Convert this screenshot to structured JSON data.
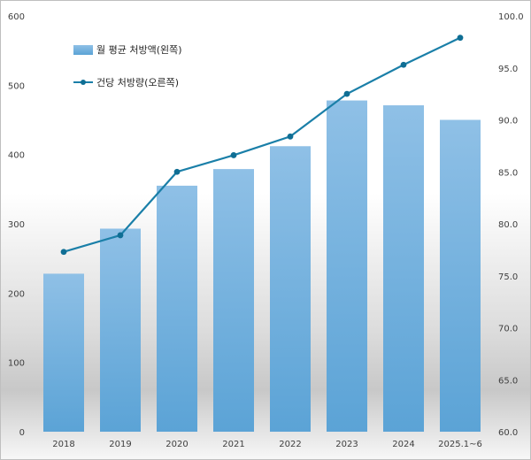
{
  "chart_data": {
    "type": "bar+line",
    "categories": [
      "2018",
      "2019",
      "2020",
      "2021",
      "2022",
      "2023",
      "2024",
      "2025.1~6"
    ],
    "series": [
      {
        "name": "월 평균 처방액(왼쪽)",
        "type": "bar",
        "axis": "left",
        "values": [
          228,
          293,
          355,
          379,
          412,
          478,
          471,
          450
        ]
      },
      {
        "name": "건당 처방량(오른쪽)",
        "type": "line",
        "axis": "right",
        "values": [
          77.3,
          78.9,
          85.0,
          86.6,
          88.4,
          92.5,
          95.3,
          97.9
        ]
      }
    ],
    "y_left": {
      "min": 0,
      "max": 600,
      "step": 100,
      "ticks": [
        "0",
        "100",
        "200",
        "300",
        "400",
        "500",
        "600"
      ]
    },
    "y_right": {
      "min": 60,
      "max": 100,
      "step": 5,
      "ticks": [
        "60.0",
        "65.0",
        "70.0",
        "75.0",
        "80.0",
        "85.0",
        "90.0",
        "95.0",
        "100.0"
      ]
    },
    "legend_position": "top-left",
    "grid": false,
    "colors": {
      "bar": "#6aaedd",
      "bar_light": "#8fc0e6",
      "line": "#1a7fa8",
      "marker": "#0f6e94"
    }
  }
}
